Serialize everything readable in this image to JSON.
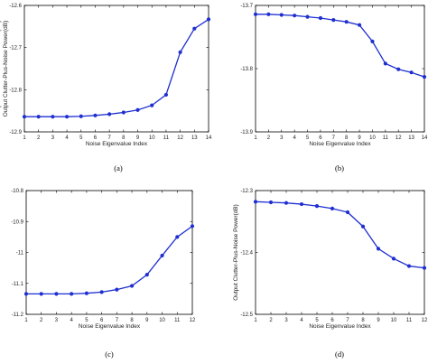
{
  "chart_data": [
    {
      "type": "line",
      "panel_label": "(a)",
      "xlabel": "Noise Eigenvalue Index",
      "ylabel": "Output Clutter-Plus-Noise Power(dB)",
      "xlim": [
        1,
        14
      ],
      "ylim": [
        -12.9,
        -12.6
      ],
      "xticks": [
        "1",
        "2",
        "3",
        "4",
        "5",
        "6",
        "7",
        "8",
        "9",
        "10",
        "11",
        "12",
        "13",
        "14"
      ],
      "yticks": [
        "-12.6",
        "-12.7",
        "-12.8",
        "-12.9"
      ],
      "series": [
        {
          "color": "#1f2fd0",
          "x": [
            1,
            2,
            3,
            4,
            5,
            6,
            7,
            8,
            9,
            10,
            11,
            12,
            13,
            14
          ],
          "y": [
            -12.864,
            -12.864,
            -12.864,
            -12.864,
            -12.863,
            -12.861,
            -12.858,
            -12.854,
            -12.848,
            -12.837,
            -12.812,
            -12.711,
            -12.655,
            -12.633
          ]
        }
      ]
    },
    {
      "type": "line",
      "panel_label": "(b)",
      "xlabel": "Noise Eigenvalue Index",
      "ylabel": "Output Clutter-Plus-Noise Power(dB)",
      "xlim": [
        1,
        14
      ],
      "ylim": [
        -13.9,
        -13.7
      ],
      "xticks": [
        "1",
        "2",
        "3",
        "4",
        "5",
        "6",
        "7",
        "8",
        "9",
        "10",
        "11",
        "12",
        "13",
        "14"
      ],
      "yticks": [
        "-13.7",
        "-13.8",
        "-13.9"
      ],
      "series": [
        {
          "color": "#1f2fd0",
          "x": [
            1,
            2,
            3,
            4,
            5,
            6,
            7,
            8,
            9,
            10,
            11,
            12,
            13,
            14
          ],
          "y": [
            -13.714,
            -13.714,
            -13.715,
            -13.716,
            -13.718,
            -13.72,
            -13.723,
            -13.726,
            -13.731,
            -13.757,
            -13.792,
            -13.801,
            -13.806,
            -13.813
          ]
        }
      ]
    },
    {
      "type": "line",
      "panel_label": "(c)",
      "xlabel": "Noise Eigenvalue Index",
      "ylabel": "",
      "xlim": [
        1,
        12
      ],
      "ylim": [
        -11.2,
        -10.8
      ],
      "xticks": [
        "1",
        "2",
        "3",
        "4",
        "5",
        "6",
        "7",
        "8",
        "9",
        "10",
        "11",
        "12"
      ],
      "yticks": [
        "-10.8",
        "-10.9",
        "-11",
        "-11.1",
        "-11.2"
      ],
      "series": [
        {
          "color": "#1f2fd0",
          "x": [
            1,
            2,
            3,
            4,
            5,
            6,
            7,
            8,
            9,
            10,
            11,
            12
          ],
          "y": [
            -11.134,
            -11.134,
            -11.134,
            -11.134,
            -11.132,
            -11.128,
            -11.12,
            -11.108,
            -11.072,
            -11.01,
            -10.95,
            -10.915
          ]
        }
      ]
    },
    {
      "type": "line",
      "panel_label": "(d)",
      "xlabel": "Noise Eigenvalue Index",
      "ylabel": "Output Clutter-Plus-Noise Power(dB)",
      "xlim": [
        1,
        12
      ],
      "ylim": [
        -12.5,
        -12.3
      ],
      "xticks": [
        "1",
        "2",
        "3",
        "4",
        "5",
        "6",
        "7",
        "8",
        "9",
        "10",
        "11",
        "12"
      ],
      "yticks": [
        "-12.3",
        "-12.4",
        "-12.5"
      ],
      "series": [
        {
          "color": "#1f2fd0",
          "x": [
            1,
            2,
            3,
            4,
            5,
            6,
            7,
            8,
            9,
            10,
            11,
            12
          ],
          "y": [
            -12.318,
            -12.319,
            -12.32,
            -12.322,
            -12.325,
            -12.329,
            -12.335,
            -12.358,
            -12.394,
            -12.41,
            -12.422,
            -12.425
          ]
        }
      ]
    }
  ]
}
